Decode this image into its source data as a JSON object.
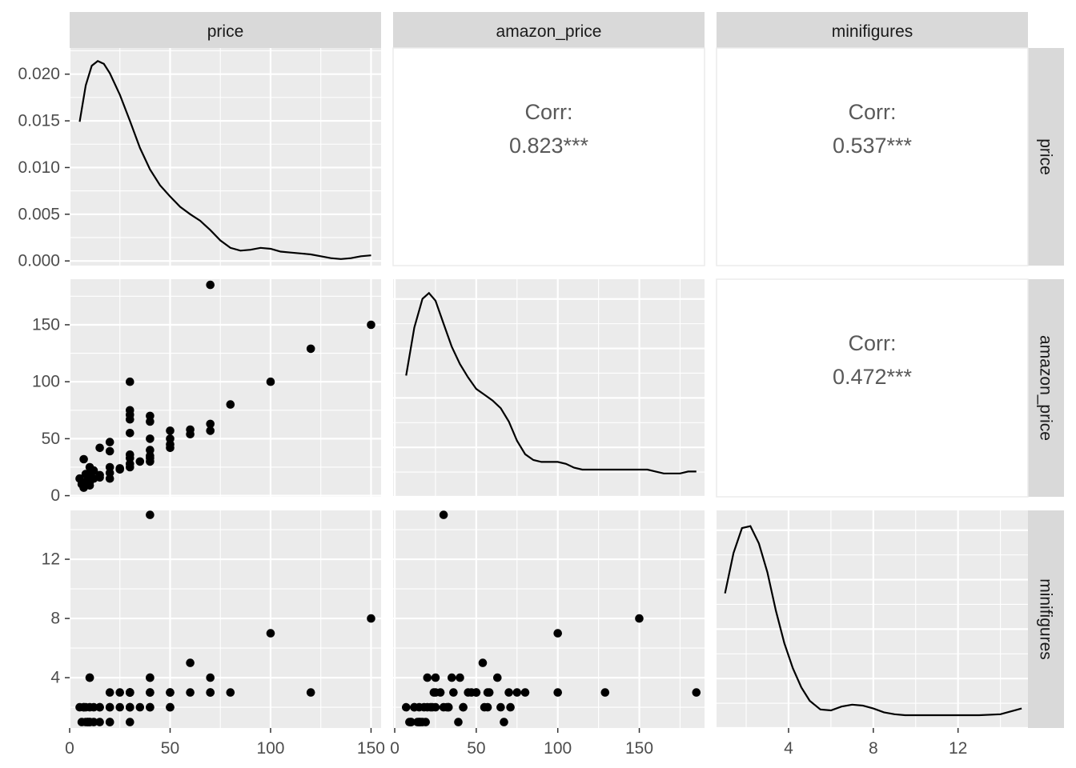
{
  "chart_data": {
    "type": "scatter",
    "title": "",
    "variables": [
      "price",
      "amazon_price",
      "minifigures"
    ],
    "colors": {
      "panel": "#ebebeb",
      "grid": "#ffffff",
      "strip": "#d9d9d9",
      "ink": "#000000",
      "corr_text": "#595959"
    },
    "axes": {
      "price": {
        "ticks": [
          0,
          50,
          100,
          150
        ],
        "tick_labels": [
          "0",
          "50",
          "100",
          "150"
        ],
        "range": [
          0,
          155
        ]
      },
      "amazon_price": {
        "ticks": [
          0,
          50,
          100,
          150
        ],
        "tick_labels": [
          "0",
          "50",
          "100",
          "150"
        ],
        "range": [
          -1,
          190
        ]
      },
      "minifigures": {
        "ticks": [
          4,
          8,
          12
        ],
        "tick_labels": [
          "4",
          "8",
          "12"
        ],
        "range": [
          0.6,
          15.3
        ]
      },
      "density_price": {
        "ticks": [
          0,
          0.005,
          0.01,
          0.015,
          0.02
        ],
        "tick_labels": [
          "0.000",
          "0.005",
          "0.010",
          "0.015",
          "0.020"
        ],
        "range": [
          -0.0005,
          0.0228
        ]
      }
    },
    "corr": {
      "label": "Corr:",
      "price_amazon_price": "0.823***",
      "price_minifigures": "0.537***",
      "amazon_price_minifigures": "0.472***"
    },
    "density": {
      "price": {
        "x": [
          5,
          8,
          11,
          14,
          17,
          20,
          25,
          30,
          35,
          40,
          45,
          50,
          55,
          60,
          65,
          70,
          75,
          80,
          85,
          90,
          95,
          100,
          105,
          110,
          115,
          120,
          125,
          130,
          135,
          140,
          145,
          150
        ],
        "y": [
          0.0149,
          0.0188,
          0.0209,
          0.0214,
          0.0211,
          0.0201,
          0.0178,
          0.015,
          0.0121,
          0.0098,
          0.0081,
          0.0069,
          0.0058,
          0.005,
          0.0043,
          0.0033,
          0.0022,
          0.0014,
          0.0011,
          0.0012,
          0.0014,
          0.0013,
          0.001,
          0.0009,
          0.0008,
          0.0007,
          0.0005,
          0.0003,
          0.0002,
          0.0003,
          0.0005,
          0.0006
        ]
      },
      "amazon_price": {
        "x": [
          7,
          12,
          17,
          21,
          25,
          30,
          35,
          40,
          45,
          50,
          55,
          60,
          65,
          70,
          75,
          80,
          85,
          90,
          95,
          100,
          105,
          110,
          115,
          120,
          125,
          130,
          135,
          140,
          145,
          150,
          155,
          160,
          165,
          170,
          175,
          180,
          185
        ],
        "rel": [
          0.57,
          0.82,
          0.97,
          1.0,
          0.96,
          0.84,
          0.72,
          0.63,
          0.56,
          0.5,
          0.47,
          0.44,
          0.4,
          0.33,
          0.23,
          0.16,
          0.13,
          0.12,
          0.12,
          0.12,
          0.11,
          0.09,
          0.08,
          0.08,
          0.08,
          0.08,
          0.08,
          0.08,
          0.08,
          0.08,
          0.08,
          0.07,
          0.06,
          0.06,
          0.06,
          0.07,
          0.07
        ]
      },
      "minifigures": {
        "x": [
          1,
          1.4,
          1.8,
          2.2,
          2.6,
          3.0,
          3.4,
          3.8,
          4.2,
          4.6,
          5.0,
          5.5,
          6.0,
          6.5,
          7.0,
          7.5,
          8.0,
          8.5,
          9.0,
          9.5,
          10,
          11,
          12,
          13,
          14,
          14.5,
          15
        ],
        "rel": [
          0.64,
          0.85,
          0.98,
          0.99,
          0.9,
          0.75,
          0.55,
          0.38,
          0.25,
          0.15,
          0.08,
          0.035,
          0.03,
          0.05,
          0.06,
          0.055,
          0.04,
          0.02,
          0.01,
          0.005,
          0.005,
          0.005,
          0.005,
          0.005,
          0.01,
          0.025,
          0.04
        ]
      }
    },
    "sets": {
      "price": [
        5,
        6,
        7,
        7,
        8,
        8,
        9,
        9,
        10,
        10,
        10,
        10,
        10,
        12,
        12,
        15,
        15,
        15,
        20,
        20,
        20,
        20,
        20,
        25,
        25,
        30,
        30,
        30,
        30,
        30,
        30,
        30,
        30,
        30,
        35,
        40,
        40,
        40,
        40,
        40,
        40,
        40,
        50,
        50,
        50,
        50,
        60,
        60,
        70,
        70,
        70,
        80,
        100,
        120,
        150
      ],
      "amazon_price": [
        15,
        10,
        32,
        7,
        19,
        12,
        10,
        14,
        25,
        20,
        12,
        9,
        17,
        22,
        15,
        42,
        16,
        18,
        15,
        47,
        25,
        39,
        20,
        24,
        23,
        28,
        25,
        36,
        55,
        67,
        71,
        75,
        100,
        33,
        30,
        35,
        40,
        70,
        65,
        50,
        30,
        33,
        42,
        57,
        50,
        45,
        58,
        54,
        57,
        185,
        63,
        80,
        100,
        129,
        150
      ],
      "minifigures": [
        2,
        1,
        2,
        2,
        1,
        2,
        1,
        1,
        4,
        4,
        2,
        1,
        1,
        2,
        1,
        2,
        1,
        2,
        1,
        3,
        2,
        1,
        2,
        3,
        2,
        3,
        3,
        3,
        2,
        1,
        2,
        3,
        3,
        2,
        2,
        4,
        4,
        3,
        2,
        3,
        15,
        2,
        2,
        2,
        3,
        3,
        3,
        5,
        3,
        3,
        4,
        3,
        7,
        3,
        8
      ]
    }
  },
  "strips": {
    "top": [
      "price",
      "amazon_price",
      "minifigures"
    ],
    "right": [
      "price",
      "amazon_price",
      "minifigures"
    ]
  }
}
